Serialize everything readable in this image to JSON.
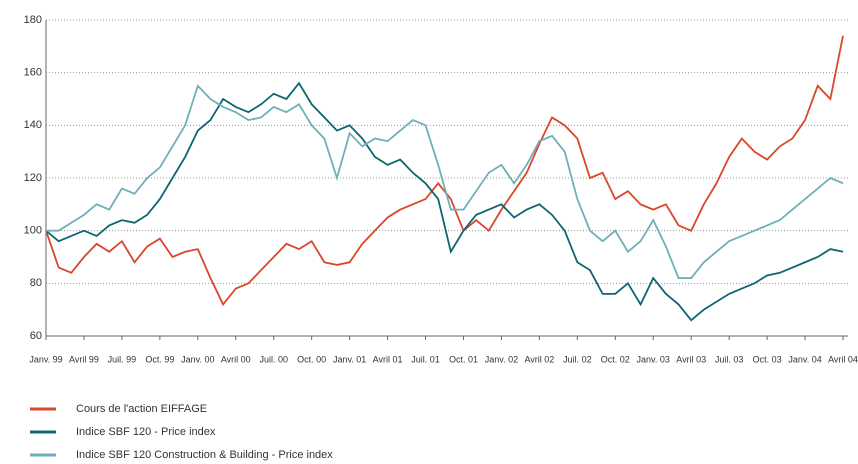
{
  "chart_data": {
    "type": "line",
    "categories": [
      "Janv. 99",
      null,
      null,
      "Avril 99",
      null,
      null,
      "Juil. 99",
      null,
      null,
      "Oct. 99",
      null,
      null,
      "Janv. 00",
      null,
      null,
      "Avril 00",
      null,
      null,
      "Juil. 00",
      null,
      null,
      "Oct. 00",
      null,
      null,
      "Janv. 01",
      null,
      null,
      "Avril 01",
      null,
      null,
      "Juil. 01",
      null,
      null,
      "Oct. 01",
      null,
      null,
      "Janv. 02",
      null,
      null,
      "Avril 02",
      null,
      null,
      "Juil. 02",
      null,
      null,
      "Oct. 02",
      null,
      null,
      "Janv. 03",
      null,
      null,
      "Avril 03",
      null,
      null,
      "Juil. 03",
      null,
      null,
      "Oct. 03",
      null,
      null,
      "Janv. 04",
      null,
      null,
      "Avril 04"
    ],
    "series": [
      {
        "name": "Cours de l'action EIFFAGE",
        "color": "#d9472b",
        "values": [
          100,
          86,
          84,
          90,
          95,
          92,
          96,
          88,
          94,
          97,
          90,
          92,
          93,
          82,
          72,
          78,
          80,
          85,
          90,
          95,
          93,
          96,
          88,
          87,
          88,
          95,
          100,
          105,
          108,
          110,
          112,
          118,
          112,
          100,
          104,
          100,
          108,
          115,
          122,
          133,
          143,
          140,
          135,
          120,
          122,
          112,
          115,
          110,
          108,
          110,
          102,
          100,
          110,
          118,
          128,
          135,
          130,
          127,
          132,
          135,
          142,
          155,
          150,
          174
        ]
      },
      {
        "name": "Indice SBF 120 - Price index",
        "color": "#0e6770",
        "values": [
          100,
          96,
          98,
          100,
          98,
          102,
          104,
          103,
          106,
          112,
          120,
          128,
          138,
          142,
          150,
          147,
          145,
          148,
          152,
          150,
          156,
          148,
          143,
          138,
          140,
          135,
          128,
          125,
          127,
          122,
          118,
          112,
          92,
          100,
          106,
          108,
          110,
          105,
          108,
          110,
          106,
          100,
          88,
          85,
          76,
          76,
          80,
          72,
          82,
          76,
          72,
          66,
          70,
          73,
          76,
          78,
          80,
          83,
          84,
          86,
          88,
          90,
          93,
          92
        ]
      },
      {
        "name": "Indice SBF 120 Construction & Building - Price index",
        "color": "#6fb0b8",
        "values": [
          100,
          100,
          103,
          106,
          110,
          108,
          116,
          114,
          120,
          124,
          132,
          140,
          155,
          150,
          147,
          145,
          142,
          143,
          147,
          145,
          148,
          140,
          135,
          120,
          137,
          132,
          135,
          134,
          138,
          142,
          140,
          125,
          108,
          108,
          115,
          122,
          125,
          118,
          125,
          134,
          136,
          130,
          112,
          100,
          96,
          100,
          92,
          96,
          104,
          94,
          82,
          82,
          88,
          92,
          96,
          98,
          100,
          102,
          104,
          108,
          112,
          116,
          120,
          118
        ]
      }
    ],
    "ylim": [
      60,
      180
    ],
    "yticks": [
      60,
      80,
      100,
      120,
      140,
      160,
      180
    ],
    "grid": true
  }
}
